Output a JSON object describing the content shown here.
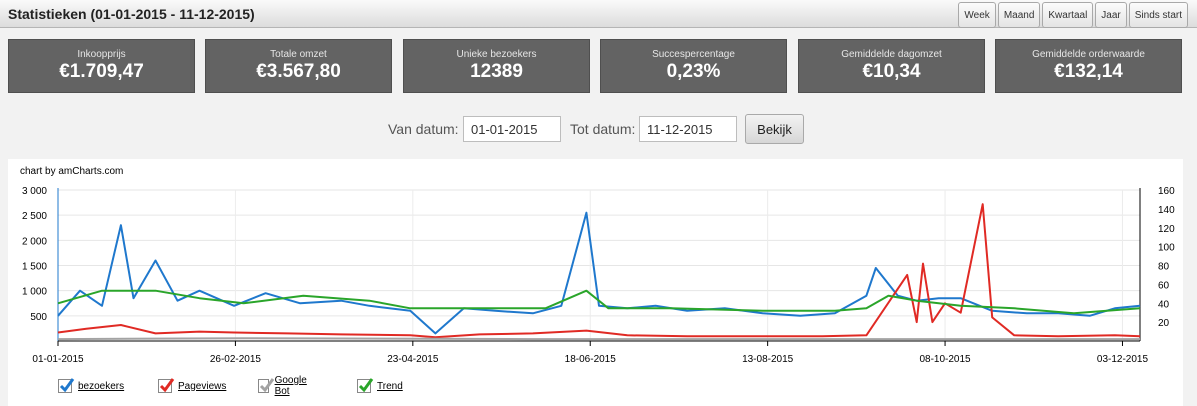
{
  "header": {
    "title": "Statistieken (01-01-2015 - 11-12-2015)",
    "ranges": [
      "Week",
      "Maand",
      "Kwartaal",
      "Jaar",
      "Sinds start"
    ]
  },
  "stats": [
    {
      "label": "Inkoopprijs",
      "value": "€1.709,47"
    },
    {
      "label": "Totale omzet",
      "value": "€3.567,80"
    },
    {
      "label": "Unieke bezoekers",
      "value": "12389"
    },
    {
      "label": "Succespercentage",
      "value": "0,23%"
    },
    {
      "label": "Gemiddelde dagomzet",
      "value": "€10,34"
    },
    {
      "label": "Gemiddelde orderwaarde",
      "value": "€132,14"
    }
  ],
  "filter": {
    "from_label": "Van datum:",
    "from_value": "01-01-2015",
    "to_label": "Tot datum:",
    "to_value": "11-12-2015",
    "submit_label": "Bekijk"
  },
  "chart_credit": "chart by amCharts.com",
  "colors": {
    "bezoekers": "#1f78cd",
    "pageviews": "#e02a24",
    "googlebot": "#a3a3a3",
    "trend": "#2aa52a"
  },
  "chart_data": {
    "type": "line",
    "x_ticks": [
      "01-01-2015",
      "26-02-2015",
      "23-04-2015",
      "18-06-2015",
      "13-08-2015",
      "08-10-2015",
      "03-12-2015"
    ],
    "x_range": [
      "2015-01-01",
      "2015-12-11"
    ],
    "y_left": {
      "min": 0,
      "max": 3000,
      "ticks": [
        "3 000",
        "2 500",
        "2 000",
        "1 500",
        "1 000",
        "500"
      ]
    },
    "y_right": {
      "min": 0,
      "max": 160,
      "ticks": [
        "160",
        "140",
        "120",
        "100",
        "80",
        "60",
        "40",
        "20"
      ]
    },
    "grid": true,
    "legend_position": "bottom-left",
    "series": [
      {
        "name": "bezoekers",
        "axis": "left",
        "color": "#1f78cd",
        "points": [
          [
            "2015-01-01",
            500
          ],
          [
            "2015-01-08",
            1000
          ],
          [
            "2015-01-15",
            700
          ],
          [
            "2015-01-21",
            2300
          ],
          [
            "2015-01-25",
            850
          ],
          [
            "2015-02-01",
            1600
          ],
          [
            "2015-02-08",
            800
          ],
          [
            "2015-02-15",
            1000
          ],
          [
            "2015-02-26",
            700
          ],
          [
            "2015-03-08",
            950
          ],
          [
            "2015-03-19",
            750
          ],
          [
            "2015-04-01",
            800
          ],
          [
            "2015-04-10",
            700
          ],
          [
            "2015-04-23",
            600
          ],
          [
            "2015-05-01",
            150
          ],
          [
            "2015-05-10",
            650
          ],
          [
            "2015-05-20",
            600
          ],
          [
            "2015-06-01",
            550
          ],
          [
            "2015-06-10",
            700
          ],
          [
            "2015-06-18",
            2550
          ],
          [
            "2015-06-22",
            700
          ],
          [
            "2015-07-01",
            650
          ],
          [
            "2015-07-10",
            700
          ],
          [
            "2015-07-20",
            600
          ],
          [
            "2015-08-01",
            650
          ],
          [
            "2015-08-13",
            550
          ],
          [
            "2015-08-25",
            500
          ],
          [
            "2015-09-05",
            550
          ],
          [
            "2015-09-15",
            900
          ],
          [
            "2015-09-18",
            1450
          ],
          [
            "2015-09-25",
            900
          ],
          [
            "2015-10-01",
            800
          ],
          [
            "2015-10-08",
            850
          ],
          [
            "2015-10-15",
            850
          ],
          [
            "2015-10-25",
            600
          ],
          [
            "2015-11-05",
            550
          ],
          [
            "2015-11-15",
            550
          ],
          [
            "2015-11-25",
            500
          ],
          [
            "2015-12-03",
            650
          ],
          [
            "2015-12-11",
            700
          ]
        ]
      },
      {
        "name": "Pageviews",
        "axis": "right",
        "color": "#e02a24",
        "points": [
          [
            "2015-01-01",
            9
          ],
          [
            "2015-01-10",
            13
          ],
          [
            "2015-01-21",
            17
          ],
          [
            "2015-02-01",
            8
          ],
          [
            "2015-02-15",
            10
          ],
          [
            "2015-02-26",
            9
          ],
          [
            "2015-03-15",
            8
          ],
          [
            "2015-04-01",
            7
          ],
          [
            "2015-04-23",
            6
          ],
          [
            "2015-05-01",
            4
          ],
          [
            "2015-05-15",
            7
          ],
          [
            "2015-06-01",
            8
          ],
          [
            "2015-06-18",
            11
          ],
          [
            "2015-07-01",
            6
          ],
          [
            "2015-07-20",
            5
          ],
          [
            "2015-08-13",
            5
          ],
          [
            "2015-09-01",
            5
          ],
          [
            "2015-09-15",
            6
          ],
          [
            "2015-09-28",
            70
          ],
          [
            "2015-10-01",
            20
          ],
          [
            "2015-10-03",
            82
          ],
          [
            "2015-10-06",
            20
          ],
          [
            "2015-10-10",
            40
          ],
          [
            "2015-10-15",
            30
          ],
          [
            "2015-10-22",
            145
          ],
          [
            "2015-10-25",
            25
          ],
          [
            "2015-11-01",
            6
          ],
          [
            "2015-11-15",
            5
          ],
          [
            "2015-12-03",
            6
          ],
          [
            "2015-12-11",
            5
          ]
        ]
      },
      {
        "name": "Google Bot",
        "axis": "right",
        "color": "#a3a3a3",
        "points": [
          [
            "2015-01-01",
            2
          ],
          [
            "2015-03-01",
            3
          ],
          [
            "2015-06-01",
            2
          ],
          [
            "2015-09-01",
            2
          ],
          [
            "2015-12-11",
            2
          ]
        ]
      },
      {
        "name": "Trend",
        "axis": "left",
        "color": "#2aa52a",
        "points": [
          [
            "2015-01-01",
            750
          ],
          [
            "2015-01-15",
            1000
          ],
          [
            "2015-02-01",
            1000
          ],
          [
            "2015-02-15",
            850
          ],
          [
            "2015-03-01",
            750
          ],
          [
            "2015-03-20",
            900
          ],
          [
            "2015-04-10",
            800
          ],
          [
            "2015-04-23",
            650
          ],
          [
            "2015-05-15",
            650
          ],
          [
            "2015-06-05",
            650
          ],
          [
            "2015-06-18",
            1000
          ],
          [
            "2015-06-25",
            650
          ],
          [
            "2015-07-15",
            650
          ],
          [
            "2015-08-13",
            600
          ],
          [
            "2015-09-05",
            600
          ],
          [
            "2015-09-15",
            650
          ],
          [
            "2015-09-22",
            900
          ],
          [
            "2015-10-01",
            800
          ],
          [
            "2015-10-15",
            700
          ],
          [
            "2015-11-01",
            650
          ],
          [
            "2015-11-20",
            550
          ],
          [
            "2015-12-11",
            650
          ]
        ]
      }
    ]
  }
}
